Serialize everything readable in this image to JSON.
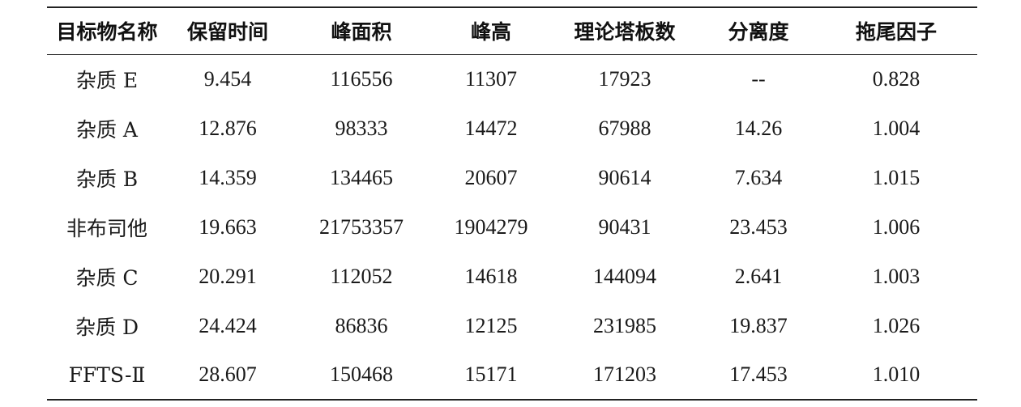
{
  "table": {
    "headers": [
      "目标物名称",
      "保留时间",
      "峰面积",
      "峰高",
      "理论塔板数",
      "分离度",
      "拖尾因子"
    ],
    "rows": [
      [
        "杂质 E",
        "9.454",
        "116556",
        "11307",
        "17923",
        "--",
        "0.828"
      ],
      [
        "杂质 A",
        "12.876",
        "98333",
        "14472",
        "67988",
        "14.26",
        "1.004"
      ],
      [
        "杂质 B",
        "14.359",
        "134465",
        "20607",
        "90614",
        "7.634",
        "1.015"
      ],
      [
        "非布司他",
        "19.663",
        "21753357",
        "1904279",
        "90431",
        "23.453",
        "1.006"
      ],
      [
        "杂质 C",
        "20.291",
        "112052",
        "14618",
        "144094",
        "2.641",
        "1.003"
      ],
      [
        "杂质 D",
        "24.424",
        "86836",
        "12125",
        "231985",
        "19.837",
        "1.026"
      ],
      [
        "FFTS-Ⅱ",
        "28.607",
        "150468",
        "15171",
        "171203",
        "17.453",
        "1.010"
      ]
    ]
  }
}
